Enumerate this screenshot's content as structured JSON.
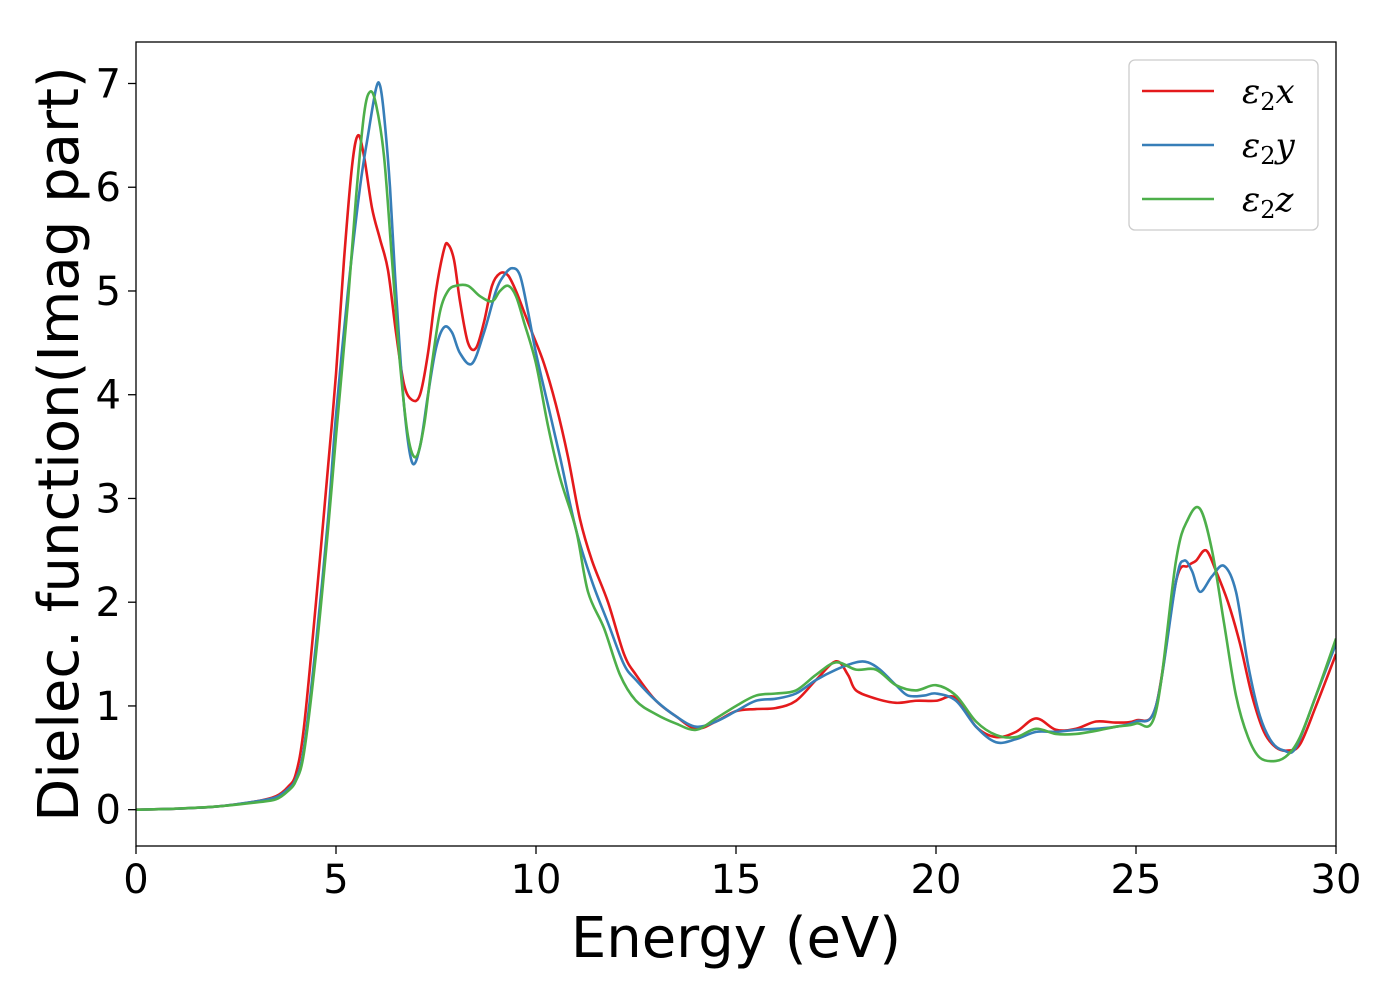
{
  "chart_data": {
    "type": "line",
    "title": "",
    "xlabel": "Energy (eV)",
    "ylabel": "Dielec. function(Imag part)",
    "xlim": [
      0,
      30
    ],
    "ylim": [
      -0.35,
      7.4
    ],
    "xticks": [
      0,
      5,
      10,
      15,
      20,
      25,
      30
    ],
    "yticks": [
      0,
      1,
      2,
      3,
      4,
      5,
      6,
      7
    ],
    "grid": false,
    "legend_position": "top-right",
    "series": [
      {
        "name": "ε2x",
        "legend_base": "ε",
        "legend_sub": "2",
        "legend_tail": "x",
        "color": "#e41a1c",
        "points": [
          [
            0,
            0.0
          ],
          [
            1,
            0.01
          ],
          [
            2,
            0.03
          ],
          [
            3,
            0.08
          ],
          [
            3.5,
            0.13
          ],
          [
            3.8,
            0.22
          ],
          [
            4.0,
            0.35
          ],
          [
            4.2,
            0.8
          ],
          [
            4.5,
            2.0
          ],
          [
            4.8,
            3.3
          ],
          [
            5.0,
            4.2
          ],
          [
            5.2,
            5.3
          ],
          [
            5.4,
            6.2
          ],
          [
            5.55,
            6.5
          ],
          [
            5.7,
            6.3
          ],
          [
            5.9,
            5.8
          ],
          [
            6.1,
            5.5
          ],
          [
            6.3,
            5.2
          ],
          [
            6.5,
            4.6
          ],
          [
            6.7,
            4.1
          ],
          [
            6.9,
            3.95
          ],
          [
            7.1,
            4.0
          ],
          [
            7.3,
            4.4
          ],
          [
            7.5,
            5.0
          ],
          [
            7.7,
            5.4
          ],
          [
            7.8,
            5.45
          ],
          [
            7.95,
            5.3
          ],
          [
            8.1,
            4.9
          ],
          [
            8.3,
            4.5
          ],
          [
            8.5,
            4.45
          ],
          [
            8.7,
            4.7
          ],
          [
            8.9,
            5.05
          ],
          [
            9.1,
            5.17
          ],
          [
            9.3,
            5.15
          ],
          [
            9.5,
            5.0
          ],
          [
            9.7,
            4.8
          ],
          [
            9.9,
            4.6
          ],
          [
            10.2,
            4.3
          ],
          [
            10.5,
            3.9
          ],
          [
            10.8,
            3.4
          ],
          [
            11.1,
            2.8
          ],
          [
            11.4,
            2.4
          ],
          [
            11.8,
            2.0
          ],
          [
            12.2,
            1.5
          ],
          [
            12.5,
            1.3
          ],
          [
            13.0,
            1.05
          ],
          [
            13.5,
            0.9
          ],
          [
            14.0,
            0.78
          ],
          [
            14.5,
            0.85
          ],
          [
            15.0,
            0.95
          ],
          [
            15.5,
            0.97
          ],
          [
            16.0,
            0.98
          ],
          [
            16.5,
            1.05
          ],
          [
            17.0,
            1.25
          ],
          [
            17.5,
            1.43
          ],
          [
            17.8,
            1.3
          ],
          [
            18.0,
            1.15
          ],
          [
            18.5,
            1.07
          ],
          [
            19.0,
            1.03
          ],
          [
            19.5,
            1.05
          ],
          [
            20.0,
            1.05
          ],
          [
            20.5,
            1.08
          ],
          [
            21.0,
            0.8
          ],
          [
            21.5,
            0.7
          ],
          [
            22.0,
            0.75
          ],
          [
            22.5,
            0.88
          ],
          [
            23.0,
            0.77
          ],
          [
            23.5,
            0.78
          ],
          [
            24.0,
            0.85
          ],
          [
            24.5,
            0.84
          ],
          [
            25.0,
            0.86
          ],
          [
            25.5,
            1.0
          ],
          [
            26.0,
            2.2
          ],
          [
            26.3,
            2.35
          ],
          [
            26.5,
            2.4
          ],
          [
            26.75,
            2.5
          ],
          [
            27.0,
            2.3
          ],
          [
            27.3,
            2.0
          ],
          [
            27.6,
            1.6
          ],
          [
            27.9,
            1.1
          ],
          [
            28.2,
            0.75
          ],
          [
            28.5,
            0.6
          ],
          [
            28.8,
            0.57
          ],
          [
            29.1,
            0.63
          ],
          [
            29.5,
            1.0
          ],
          [
            30.0,
            1.5
          ]
        ]
      },
      {
        "name": "ε2y",
        "legend_base": "ε",
        "legend_sub": "2",
        "legend_tail": "y",
        "color": "#377eb8",
        "points": [
          [
            0,
            0.0
          ],
          [
            1,
            0.01
          ],
          [
            2,
            0.03
          ],
          [
            3,
            0.08
          ],
          [
            3.5,
            0.12
          ],
          [
            3.8,
            0.2
          ],
          [
            4.0,
            0.3
          ],
          [
            4.2,
            0.6
          ],
          [
            4.5,
            1.6
          ],
          [
            4.8,
            2.8
          ],
          [
            5.0,
            3.8
          ],
          [
            5.3,
            5.0
          ],
          [
            5.6,
            6.0
          ],
          [
            5.8,
            6.5
          ],
          [
            6.0,
            6.95
          ],
          [
            6.1,
            6.98
          ],
          [
            6.2,
            6.7
          ],
          [
            6.35,
            6.0
          ],
          [
            6.5,
            5.0
          ],
          [
            6.7,
            3.9
          ],
          [
            6.9,
            3.35
          ],
          [
            7.1,
            3.5
          ],
          [
            7.3,
            4.0
          ],
          [
            7.5,
            4.45
          ],
          [
            7.7,
            4.65
          ],
          [
            7.9,
            4.6
          ],
          [
            8.1,
            4.4
          ],
          [
            8.4,
            4.3
          ],
          [
            8.7,
            4.6
          ],
          [
            9.0,
            5.0
          ],
          [
            9.2,
            5.15
          ],
          [
            9.4,
            5.22
          ],
          [
            9.6,
            5.15
          ],
          [
            9.8,
            4.8
          ],
          [
            10.0,
            4.4
          ],
          [
            10.3,
            3.9
          ],
          [
            10.6,
            3.4
          ],
          [
            11.0,
            2.7
          ],
          [
            11.4,
            2.2
          ],
          [
            11.8,
            1.8
          ],
          [
            12.2,
            1.4
          ],
          [
            12.5,
            1.25
          ],
          [
            13.0,
            1.05
          ],
          [
            13.5,
            0.9
          ],
          [
            14.0,
            0.8
          ],
          [
            14.5,
            0.85
          ],
          [
            15.0,
            0.95
          ],
          [
            15.5,
            1.05
          ],
          [
            16.0,
            1.07
          ],
          [
            16.5,
            1.12
          ],
          [
            17.0,
            1.25
          ],
          [
            17.5,
            1.35
          ],
          [
            18.0,
            1.42
          ],
          [
            18.3,
            1.42
          ],
          [
            18.6,
            1.35
          ],
          [
            19.0,
            1.2
          ],
          [
            19.3,
            1.1
          ],
          [
            19.7,
            1.1
          ],
          [
            20.0,
            1.12
          ],
          [
            20.5,
            1.05
          ],
          [
            21.0,
            0.8
          ],
          [
            21.5,
            0.65
          ],
          [
            22.0,
            0.68
          ],
          [
            22.5,
            0.75
          ],
          [
            23.0,
            0.75
          ],
          [
            23.5,
            0.77
          ],
          [
            24.0,
            0.78
          ],
          [
            24.5,
            0.8
          ],
          [
            25.0,
            0.85
          ],
          [
            25.5,
            1.0
          ],
          [
            26.0,
            2.2
          ],
          [
            26.2,
            2.4
          ],
          [
            26.4,
            2.3
          ],
          [
            26.6,
            2.1
          ],
          [
            26.9,
            2.25
          ],
          [
            27.2,
            2.35
          ],
          [
            27.5,
            2.1
          ],
          [
            27.8,
            1.4
          ],
          [
            28.1,
            0.9
          ],
          [
            28.4,
            0.65
          ],
          [
            28.7,
            0.57
          ],
          [
            29.0,
            0.6
          ],
          [
            29.5,
            1.1
          ],
          [
            30.0,
            1.6
          ]
        ]
      },
      {
        "name": "ε2z",
        "legend_base": "ε",
        "legend_sub": "2",
        "legend_tail": "z",
        "color": "#4daf4a",
        "points": [
          [
            0,
            0.0
          ],
          [
            1,
            0.01
          ],
          [
            2,
            0.03
          ],
          [
            3,
            0.07
          ],
          [
            3.5,
            0.1
          ],
          [
            3.8,
            0.18
          ],
          [
            4.0,
            0.28
          ],
          [
            4.2,
            0.55
          ],
          [
            4.5,
            1.5
          ],
          [
            4.8,
            2.7
          ],
          [
            5.0,
            3.6
          ],
          [
            5.3,
            4.9
          ],
          [
            5.5,
            5.9
          ],
          [
            5.7,
            6.7
          ],
          [
            5.85,
            6.92
          ],
          [
            6.0,
            6.8
          ],
          [
            6.2,
            6.3
          ],
          [
            6.4,
            5.3
          ],
          [
            6.6,
            4.3
          ],
          [
            6.8,
            3.6
          ],
          [
            7.0,
            3.4
          ],
          [
            7.2,
            3.7
          ],
          [
            7.4,
            4.3
          ],
          [
            7.6,
            4.8
          ],
          [
            7.8,
            5.0
          ],
          [
            8.0,
            5.05
          ],
          [
            8.3,
            5.05
          ],
          [
            8.6,
            4.95
          ],
          [
            8.9,
            4.9
          ],
          [
            9.1,
            5.0
          ],
          [
            9.3,
            5.05
          ],
          [
            9.5,
            4.95
          ],
          [
            9.7,
            4.7
          ],
          [
            10.0,
            4.3
          ],
          [
            10.3,
            3.7
          ],
          [
            10.6,
            3.2
          ],
          [
            11.0,
            2.7
          ],
          [
            11.3,
            2.1
          ],
          [
            11.7,
            1.75
          ],
          [
            12.1,
            1.3
          ],
          [
            12.5,
            1.05
          ],
          [
            13.0,
            0.92
          ],
          [
            13.5,
            0.83
          ],
          [
            14.0,
            0.77
          ],
          [
            14.5,
            0.88
          ],
          [
            15.0,
            1.0
          ],
          [
            15.5,
            1.1
          ],
          [
            16.0,
            1.12
          ],
          [
            16.5,
            1.15
          ],
          [
            17.0,
            1.3
          ],
          [
            17.5,
            1.42
          ],
          [
            18.0,
            1.35
          ],
          [
            18.5,
            1.35
          ],
          [
            19.0,
            1.2
          ],
          [
            19.5,
            1.15
          ],
          [
            20.0,
            1.2
          ],
          [
            20.5,
            1.1
          ],
          [
            21.0,
            0.85
          ],
          [
            21.5,
            0.72
          ],
          [
            22.0,
            0.7
          ],
          [
            22.5,
            0.78
          ],
          [
            23.0,
            0.73
          ],
          [
            23.5,
            0.73
          ],
          [
            24.0,
            0.76
          ],
          [
            24.5,
            0.8
          ],
          [
            25.0,
            0.83
          ],
          [
            25.5,
            0.95
          ],
          [
            26.0,
            2.4
          ],
          [
            26.3,
            2.8
          ],
          [
            26.6,
            2.9
          ],
          [
            26.9,
            2.5
          ],
          [
            27.2,
            1.8
          ],
          [
            27.5,
            1.1
          ],
          [
            27.8,
            0.7
          ],
          [
            28.1,
            0.5
          ],
          [
            28.5,
            0.47
          ],
          [
            28.8,
            0.53
          ],
          [
            29.1,
            0.7
          ],
          [
            29.5,
            1.1
          ],
          [
            30.0,
            1.65
          ]
        ]
      }
    ]
  }
}
